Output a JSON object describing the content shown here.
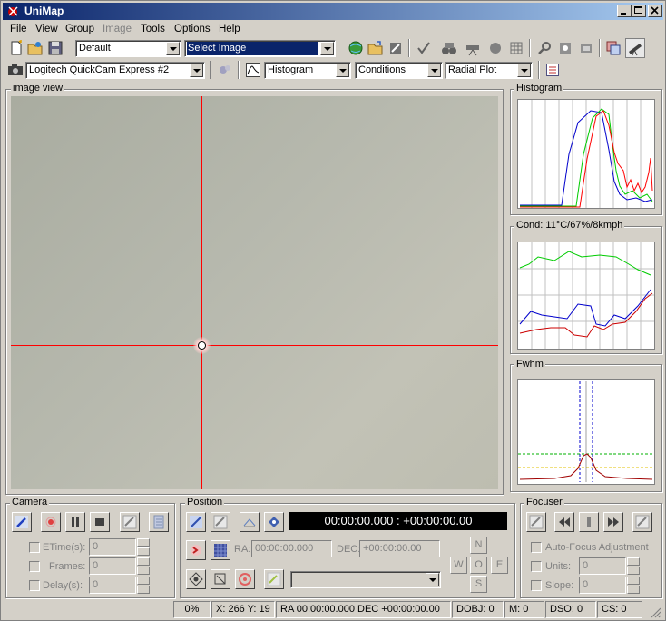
{
  "window": {
    "title": "UniMap"
  },
  "menu": [
    "File",
    "View",
    "Group",
    "Image",
    "Tools",
    "Options",
    "Help"
  ],
  "menu_disabled": [
    "Image"
  ],
  "toolbar1": {
    "profile": "Default",
    "image_select": "Select Image"
  },
  "toolbar2": {
    "camera": "Logitech QuickCam Express #2",
    "view1": "Histogram",
    "view2": "Conditions",
    "view3": "Radial Plot"
  },
  "panels": {
    "image_view": "image view",
    "histogram": "Histogram",
    "conditions": "Cond: 11°C/67%/8kmph",
    "fwhm": "Fwhm"
  },
  "camera": {
    "title": "Camera",
    "etime_label": "ETime(s):",
    "etime_value": "0",
    "frames_label": "Frames:",
    "frames_value": "0",
    "delay_label": "Delay(s):",
    "delay_value": "0"
  },
  "position": {
    "title": "Position",
    "clock": "00:00:00.000 : +00:00:00.00",
    "ra_label": "RA:",
    "ra_value": "00:00:00.000",
    "dec_label": "DEC:",
    "dec_value": "+00:00:00.00",
    "dir_n": "N",
    "dir_w": "W",
    "dir_o": "O",
    "dir_e": "E",
    "dir_s": "S"
  },
  "focuser": {
    "title": "Focuser",
    "autofocus_label": "Auto-Focus Adjustment",
    "units_label": "Units:",
    "units_value": "0",
    "slope_label": "Slope:",
    "slope_value": "0"
  },
  "statusbar": {
    "percent": "0%",
    "xy": "X: 266 Y:  19",
    "radec": "RA  00:00:00.000 DEC +00:00:00.00",
    "dobj": "DOBJ:   0",
    "m": "M:   0",
    "dso": "DSO:   0",
    "cs": "CS:   0"
  },
  "colors": {
    "crosshair": "#ff0000",
    "histogram_blue": "#0000cc",
    "histogram_green": "#00cc00",
    "histogram_red": "#ff0000"
  }
}
